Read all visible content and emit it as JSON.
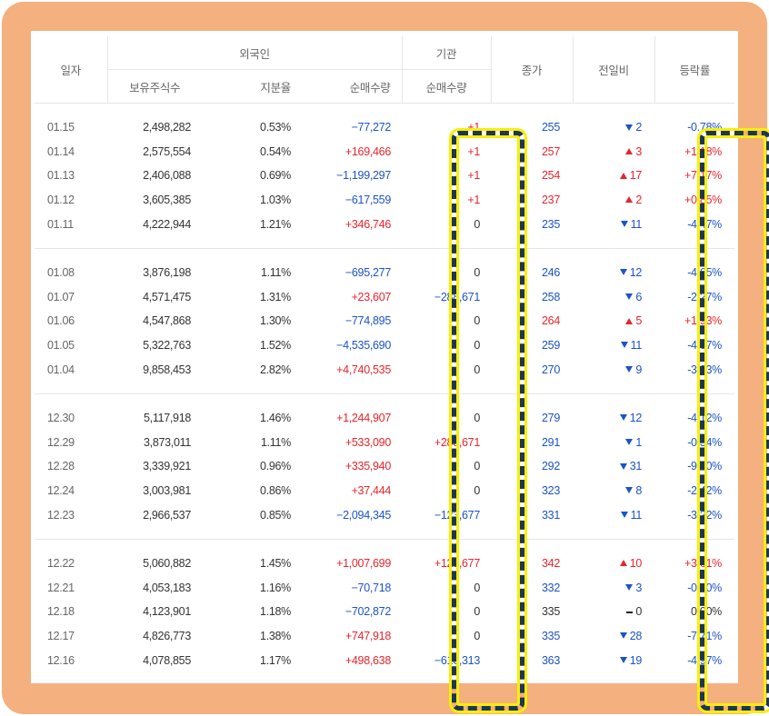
{
  "headers": {
    "date": "일자",
    "foreign": "외국인",
    "holding": "보유주식수",
    "ratio": "지분율",
    "foreign_net": "순매수량",
    "institution": "기관",
    "inst_net": "순매수량",
    "close": "종가",
    "change": "전일비",
    "rate": "등락률"
  },
  "groups": [
    [
      {
        "date": "01.15",
        "holding": "2,498,282",
        "ratio": "0.53%",
        "fnet": "−77,272",
        "fdir": "dn",
        "inet": "+1",
        "idir": "up",
        "close": "255",
        "cdir": "dn",
        "chg": "2",
        "chdir": "dn",
        "rate": "-0.78%",
        "rdir": "dn"
      },
      {
        "date": "01.14",
        "holding": "2,575,554",
        "ratio": "0.54%",
        "fnet": "+169,466",
        "fdir": "up",
        "inet": "+1",
        "idir": "up",
        "close": "257",
        "cdir": "up",
        "chg": "3",
        "chdir": "up",
        "rate": "+1.18%",
        "rdir": "up"
      },
      {
        "date": "01.13",
        "holding": "2,406,088",
        "ratio": "0.69%",
        "fnet": "−1,199,297",
        "fdir": "dn",
        "inet": "+1",
        "idir": "up",
        "close": "254",
        "cdir": "up",
        "chg": "17",
        "chdir": "up",
        "rate": "+7.17%",
        "rdir": "up"
      },
      {
        "date": "01.12",
        "holding": "3,605,385",
        "ratio": "1.03%",
        "fnet": "−617,559",
        "fdir": "dn",
        "inet": "+1",
        "idir": "up",
        "close": "237",
        "cdir": "up",
        "chg": "2",
        "chdir": "up",
        "rate": "+0.85%",
        "rdir": "up"
      },
      {
        "date": "01.11",
        "holding": "4,222,944",
        "ratio": "1.21%",
        "fnet": "+346,746",
        "fdir": "up",
        "inet": "0",
        "idir": "nu",
        "close": "235",
        "cdir": "dn",
        "chg": "11",
        "chdir": "dn",
        "rate": "-4.47%",
        "rdir": "dn"
      }
    ],
    [
      {
        "date": "01.08",
        "holding": "3,876,198",
        "ratio": "1.11%",
        "fnet": "−695,277",
        "fdir": "dn",
        "inet": "0",
        "idir": "nu",
        "close": "246",
        "cdir": "dn",
        "chg": "12",
        "chdir": "dn",
        "rate": "-4.65%",
        "rdir": "dn"
      },
      {
        "date": "01.07",
        "holding": "4,571,475",
        "ratio": "1.31%",
        "fnet": "+23,607",
        "fdir": "up",
        "inet": "−288,671",
        "idir": "dn",
        "close": "258",
        "cdir": "dn",
        "chg": "6",
        "chdir": "dn",
        "rate": "-2.27%",
        "rdir": "dn"
      },
      {
        "date": "01.06",
        "holding": "4,547,868",
        "ratio": "1.30%",
        "fnet": "−774,895",
        "fdir": "dn",
        "inet": "0",
        "idir": "nu",
        "close": "264",
        "cdir": "up",
        "chg": "5",
        "chdir": "up",
        "rate": "+1.93%",
        "rdir": "up"
      },
      {
        "date": "01.05",
        "holding": "5,322,763",
        "ratio": "1.52%",
        "fnet": "−4,535,690",
        "fdir": "dn",
        "inet": "0",
        "idir": "nu",
        "close": "259",
        "cdir": "dn",
        "chg": "11",
        "chdir": "dn",
        "rate": "-4.07%",
        "rdir": "dn"
      },
      {
        "date": "01.04",
        "holding": "9,858,453",
        "ratio": "2.82%",
        "fnet": "+4,740,535",
        "fdir": "up",
        "inet": "0",
        "idir": "nu",
        "close": "270",
        "cdir": "dn",
        "chg": "9",
        "chdir": "dn",
        "rate": "-3.23%",
        "rdir": "dn"
      }
    ],
    [
      {
        "date": "12.30",
        "holding": "5,117,918",
        "ratio": "1.46%",
        "fnet": "+1,244,907",
        "fdir": "up",
        "inet": "0",
        "idir": "nu",
        "close": "279",
        "cdir": "dn",
        "chg": "12",
        "chdir": "dn",
        "rate": "-4.12%",
        "rdir": "dn"
      },
      {
        "date": "12.29",
        "holding": "3,873,011",
        "ratio": "1.11%",
        "fnet": "+533,090",
        "fdir": "up",
        "inet": "+288,671",
        "idir": "up",
        "close": "291",
        "cdir": "dn",
        "chg": "1",
        "chdir": "dn",
        "rate": "-0.34%",
        "rdir": "dn"
      },
      {
        "date": "12.28",
        "holding": "3,339,921",
        "ratio": "0.96%",
        "fnet": "+335,940",
        "fdir": "up",
        "inet": "0",
        "idir": "nu",
        "close": "292",
        "cdir": "dn",
        "chg": "31",
        "chdir": "dn",
        "rate": "-9.60%",
        "rdir": "dn"
      },
      {
        "date": "12.24",
        "holding": "3,003,981",
        "ratio": "0.86%",
        "fnet": "+37,444",
        "fdir": "up",
        "inet": "0",
        "idir": "nu",
        "close": "323",
        "cdir": "dn",
        "chg": "8",
        "chdir": "dn",
        "rate": "-2.42%",
        "rdir": "dn"
      },
      {
        "date": "12.23",
        "holding": "2,966,537",
        "ratio": "0.85%",
        "fnet": "−2,094,345",
        "fdir": "dn",
        "inet": "−123,677",
        "idir": "dn",
        "close": "331",
        "cdir": "dn",
        "chg": "11",
        "chdir": "dn",
        "rate": "-3.22%",
        "rdir": "dn"
      }
    ],
    [
      {
        "date": "12.22",
        "holding": "5,060,882",
        "ratio": "1.45%",
        "fnet": "+1,007,699",
        "fdir": "up",
        "inet": "+123,677",
        "idir": "up",
        "close": "342",
        "cdir": "up",
        "chg": "10",
        "chdir": "up",
        "rate": "+3.01%",
        "rdir": "up"
      },
      {
        "date": "12.21",
        "holding": "4,053,183",
        "ratio": "1.16%",
        "fnet": "−70,718",
        "fdir": "dn",
        "inet": "0",
        "idir": "nu",
        "close": "332",
        "cdir": "dn",
        "chg": "3",
        "chdir": "dn",
        "rate": "-0.90%",
        "rdir": "dn"
      },
      {
        "date": "12.18",
        "holding": "4,123,901",
        "ratio": "1.18%",
        "fnet": "−702,872",
        "fdir": "dn",
        "inet": "0",
        "idir": "nu",
        "close": "335",
        "cdir": "nu",
        "chg": "0",
        "chdir": "nu",
        "rate": "0.00%",
        "rdir": "nu"
      },
      {
        "date": "12.17",
        "holding": "4,826,773",
        "ratio": "1.38%",
        "fnet": "+747,918",
        "fdir": "up",
        "inet": "0",
        "idir": "nu",
        "close": "335",
        "cdir": "dn",
        "chg": "28",
        "chdir": "dn",
        "rate": "-7.71%",
        "rdir": "dn"
      },
      {
        "date": "12.16",
        "holding": "4,078,855",
        "ratio": "1.17%",
        "fnet": "+498,638",
        "fdir": "up",
        "inet": "−616,313",
        "idir": "dn",
        "close": "363",
        "cdir": "dn",
        "chg": "19",
        "chdir": "dn",
        "rate": "-4.97%",
        "rdir": "dn"
      }
    ]
  ],
  "icons": {
    "up": "triangle-up-icon",
    "dn": "triangle-down-icon",
    "nu": "dash-icon"
  },
  "colors": {
    "frame": "#f5b07f",
    "up": "#e8242b",
    "down": "#1b53c9",
    "highlight_border": "#1d3557",
    "highlight_glow": "#f7f000"
  }
}
